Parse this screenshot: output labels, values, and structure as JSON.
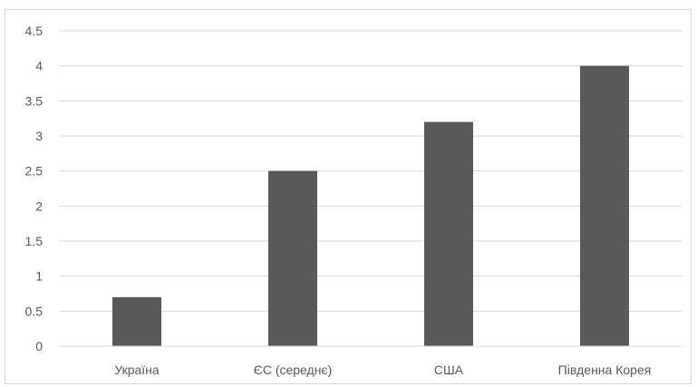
{
  "chart_data": {
    "type": "bar",
    "categories": [
      "Україна",
      "ЄС (середнє)",
      "США",
      "Південна Корея"
    ],
    "values": [
      0.7,
      2.5,
      3.2,
      4.0
    ],
    "ylim": [
      0,
      4.5
    ],
    "yticks": [
      "0",
      "0.5",
      "1",
      "1.5",
      "2",
      "2.5",
      "3",
      "3.5",
      "4",
      "4.5"
    ],
    "title": "",
    "xlabel": "",
    "ylabel": "",
    "grid": true,
    "legend": "none",
    "bar_color": "#595959",
    "grid_color": "#d9d9d9",
    "text_color": "#595959"
  }
}
